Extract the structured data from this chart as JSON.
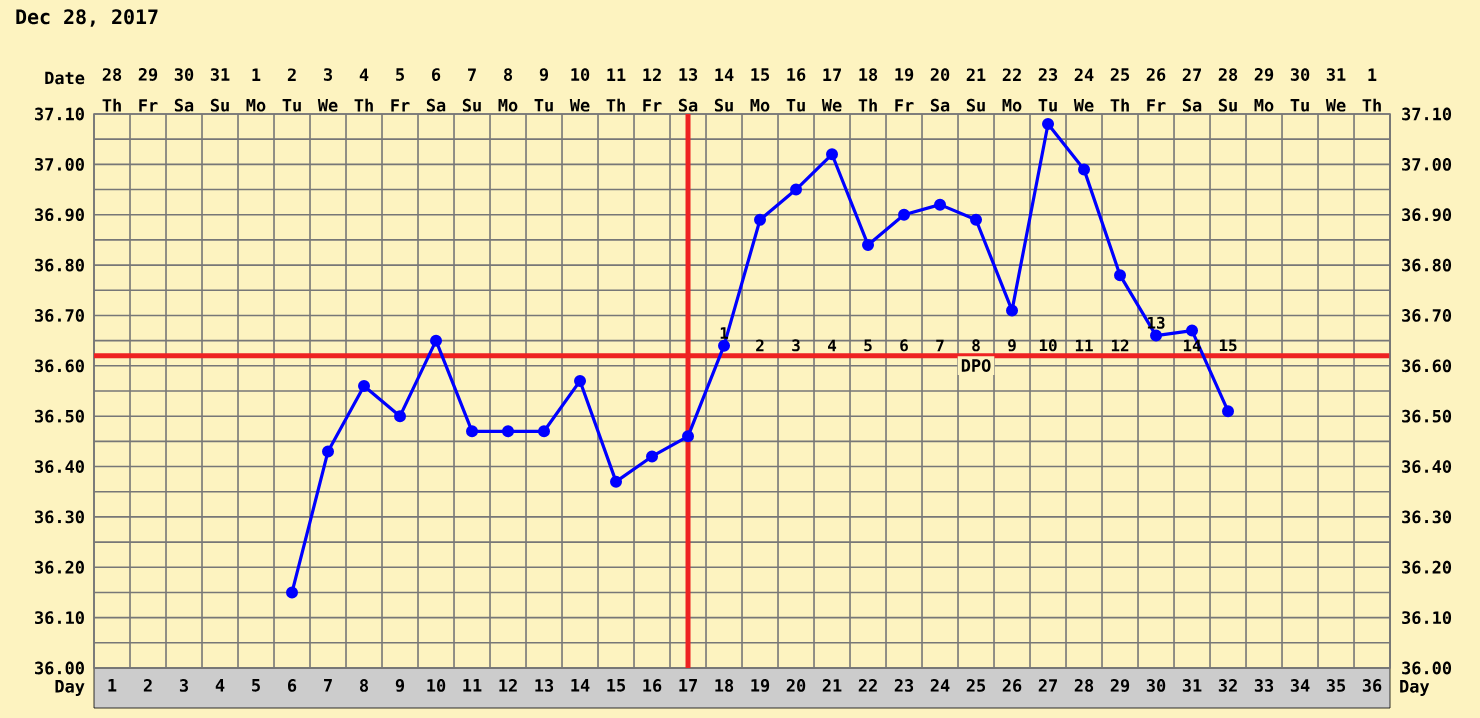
{
  "chart_data": {
    "type": "line",
    "title": "Dec 28, 2017",
    "xlabel": "Day",
    "x2label": "Date",
    "series": [
      {
        "color": "#0000ff",
        "x": [
          6,
          7,
          8,
          9,
          10,
          11,
          12,
          13,
          14,
          15,
          16,
          17,
          18,
          19,
          20,
          21,
          22,
          23,
          24,
          25,
          26,
          27,
          28,
          29,
          30,
          31,
          32
        ],
        "values": [
          36.15,
          36.43,
          36.56,
          36.5,
          36.65,
          36.47,
          36.47,
          36.47,
          36.57,
          36.37,
          36.42,
          36.46,
          36.64,
          36.89,
          36.95,
          37.02,
          36.84,
          36.9,
          36.92,
          36.89,
          36.71,
          37.08,
          36.99,
          36.78,
          36.66,
          36.67,
          36.51
        ]
      }
    ],
    "marker": "circle",
    "line_style": "solid",
    "grid": true,
    "xlim": [
      0.5,
      36.5
    ],
    "xticks": [
      1,
      2,
      3,
      4,
      5,
      6,
      7,
      8,
      9,
      10,
      11,
      12,
      13,
      14,
      15,
      16,
      17,
      18,
      19,
      20,
      21,
      22,
      23,
      24,
      25,
      26,
      27,
      28,
      29,
      30,
      31,
      32,
      33,
      34,
      35,
      36,
      {
        "value": 0.5,
        "label": null
      },
      {
        "value": 1.5,
        "label": null
      },
      {
        "value": 2.5,
        "label": null
      },
      {
        "value": 3.5,
        "label": null
      },
      {
        "value": 4.5,
        "label": null
      },
      {
        "value": 5.5,
        "label": null
      },
      {
        "value": 6.5,
        "label": null
      },
      {
        "value": 7.5,
        "label": null
      },
      {
        "value": 8.5,
        "label": null
      },
      {
        "value": 9.5,
        "label": null
      },
      {
        "value": 10.5,
        "label": null
      },
      {
        "value": 11.5,
        "label": null
      },
      {
        "value": 12.5,
        "label": null
      },
      {
        "value": 13.5,
        "label": null
      },
      {
        "value": 14.5,
        "label": null
      },
      {
        "value": 15.5,
        "label": null
      },
      {
        "value": 16.5,
        "label": null
      },
      {
        "value": 17.5,
        "label": null
      },
      {
        "value": 18.5,
        "label": null
      },
      {
        "value": 19.5,
        "label": null
      },
      {
        "value": 20.5,
        "label": null
      },
      {
        "value": 21.5,
        "label": null
      },
      {
        "value": 22.5,
        "label": null
      },
      {
        "value": 23.5,
        "label": null
      },
      {
        "value": 24.5,
        "label": null
      },
      {
        "value": 25.5,
        "label": null
      },
      {
        "value": 26.5,
        "label": null
      },
      {
        "value": 27.5,
        "label": null
      },
      {
        "value": 28.5,
        "label": null
      },
      {
        "value": 29.5,
        "label": null
      },
      {
        "value": 30.5,
        "label": null
      },
      {
        "value": 31.5,
        "label": null
      },
      {
        "value": 32.5,
        "label": null
      },
      {
        "value": 33.5,
        "label": null
      },
      {
        "value": 34.5,
        "label": null
      },
      {
        "value": 35.5,
        "label": null
      },
      {
        "value": 36.5,
        "label": null
      }
    ],
    "x2lim": [
      "2017-12-27T12:00",
      "2018-02-01T12:00"
    ],
    "x2ticks": [
      {
        "value": "2017-12-28",
        "label": "28"
      },
      {
        "value": "2017-12-29",
        "label": "29"
      },
      {
        "value": "2017-12-30",
        "label": "30"
      },
      {
        "value": "2017-12-31",
        "label": "31"
      },
      {
        "value": "2018-01-01",
        "label": "1"
      },
      {
        "value": "2018-01-02",
        "label": "2"
      },
      {
        "value": "2018-01-03",
        "label": "3"
      },
      {
        "value": "2018-01-04",
        "label": "4"
      },
      {
        "value": "2018-01-05",
        "label": "5"
      },
      {
        "value": "2018-01-06",
        "label": "6"
      },
      {
        "value": "2018-01-07",
        "label": "7"
      },
      {
        "value": "2018-01-08",
        "label": "8"
      },
      {
        "value": "2018-01-09",
        "label": "9"
      },
      {
        "value": "2018-01-10",
        "label": "10"
      },
      {
        "value": "2018-01-11",
        "label": "11"
      },
      {
        "value": "2018-01-12",
        "label": "12"
      },
      {
        "value": "2018-01-13",
        "label": "13"
      },
      {
        "value": "2018-01-14",
        "label": "14"
      },
      {
        "value": "2018-01-15",
        "label": "15"
      },
      {
        "value": "2018-01-16",
        "label": "16"
      },
      {
        "value": "2018-01-17",
        "label": "17"
      },
      {
        "value": "2018-01-18",
        "label": "18"
      },
      {
        "value": "2018-01-19",
        "label": "19"
      },
      {
        "value": "2018-01-20",
        "label": "20"
      },
      {
        "value": "2018-01-21",
        "label": "21"
      },
      {
        "value": "2018-01-22",
        "label": "22"
      },
      {
        "value": "2018-01-23",
        "label": "23"
      },
      {
        "value": "2018-01-24",
        "label": "24"
      },
      {
        "value": "2018-01-25",
        "label": "25"
      },
      {
        "value": "2018-01-26",
        "label": "26"
      },
      {
        "value": "2018-01-27",
        "label": "27"
      },
      {
        "value": "2018-01-28",
        "label": "28"
      },
      {
        "value": "2018-01-29",
        "label": "29"
      },
      {
        "value": "2018-01-30",
        "label": "30"
      },
      {
        "value": "2018-01-31",
        "label": "31"
      },
      {
        "value": "2018-02-01",
        "label": "1"
      }
    ],
    "ylim": [
      36.0,
      37.1
    ],
    "yticks": [
      {
        "value": 36.0,
        "label": "36.00"
      },
      {
        "value": 36.1,
        "label": "36.10"
      },
      {
        "value": 36.2,
        "label": "36.20"
      },
      {
        "value": 36.3,
        "label": "36.30"
      },
      {
        "value": 36.4,
        "label": "36.40"
      },
      {
        "value": 36.5,
        "label": "36.50"
      },
      {
        "value": 36.6,
        "label": "36.60"
      },
      {
        "value": 36.7,
        "label": "36.70"
      },
      {
        "value": 36.8,
        "label": "36.80"
      },
      {
        "value": 36.9,
        "label": "36.90"
      },
      {
        "value": 37.0,
        "label": "37.00"
      },
      {
        "value": 37.1,
        "label": "37.10"
      },
      {
        "value": 36.05,
        "label": null
      },
      {
        "value": 36.15,
        "label": null
      },
      {
        "value": 36.25,
        "label": null
      },
      {
        "value": 36.35,
        "label": null
      },
      {
        "value": 36.45,
        "label": null
      },
      {
        "value": 36.55,
        "label": null
      },
      {
        "value": 36.65,
        "label": null
      },
      {
        "value": 36.75,
        "label": null
      },
      {
        "value": 36.85,
        "label": null
      },
      {
        "value": 36.95,
        "label": null
      },
      {
        "value": 37.05,
        "label": null
      }
    ],
    "y2lim": [
      36.0,
      37.1
    ],
    "y2ticks": [
      {
        "value": 36.0,
        "label": "36.00"
      },
      {
        "value": 36.1,
        "label": "36.10"
      },
      {
        "value": 36.2,
        "label": "36.20"
      },
      {
        "value": 36.3,
        "label": "36.30"
      },
      {
        "value": 36.4,
        "label": "36.40"
      },
      {
        "value": 36.5,
        "label": "36.50"
      },
      {
        "value": 36.6,
        "label": "36.60"
      },
      {
        "value": 36.7,
        "label": "36.70"
      },
      {
        "value": 36.8,
        "label": "36.80"
      },
      {
        "value": 36.9,
        "label": "36.90"
      },
      {
        "value": 37.0,
        "label": "37.00"
      },
      {
        "value": 37.1,
        "label": "37.10"
      }
    ],
    "ref_lines": [
      {
        "axis": "y",
        "value": 36.62,
        "color": "#ee2222",
        "label": "DPO"
      },
      {
        "axis": "x",
        "value": 17,
        "color": "#ee2222"
      }
    ],
    "annotations": [
      {
        "text": "1",
        "x": 18,
        "y": 36.62
      },
      {
        "text": "2",
        "x": 19,
        "y": 36.62
      },
      {
        "text": "3",
        "x": 20,
        "y": 36.62
      },
      {
        "text": "4",
        "x": 21,
        "y": 36.62
      },
      {
        "text": "5",
        "x": 22,
        "y": 36.62
      },
      {
        "text": "6",
        "x": 23,
        "y": 36.62
      },
      {
        "text": "7",
        "x": 24,
        "y": 36.62
      },
      {
        "text": "8",
        "x": 25,
        "y": 36.62
      },
      {
        "text": "9",
        "x": 26,
        "y": 36.62
      },
      {
        "text": "10",
        "x": 27,
        "y": 36.62
      },
      {
        "text": "11",
        "x": 28,
        "y": 36.62
      },
      {
        "text": "12",
        "x": 29,
        "y": 36.62
      },
      {
        "text": "13",
        "x": 30,
        "y": 36.62
      },
      {
        "text": "14",
        "x": 31,
        "y": 36.62
      },
      {
        "text": "15",
        "x": 32,
        "y": 36.62
      },
      "Th",
      "Fr",
      "Sa",
      "Su",
      "Mo",
      "Tu",
      "We",
      "Th",
      "Fr",
      "Sa",
      "Su",
      "Mo",
      "Tu",
      "We",
      "Th",
      "Fr",
      "Sa",
      "Su",
      "Mo",
      "Tu",
      "We",
      "Th",
      "Fr",
      "Sa",
      "Su",
      "Mo",
      "Tu",
      "We",
      "Th",
      "Fr",
      "Sa",
      "Su",
      "Mo",
      "Tu",
      "We",
      "Th"
    ]
  }
}
